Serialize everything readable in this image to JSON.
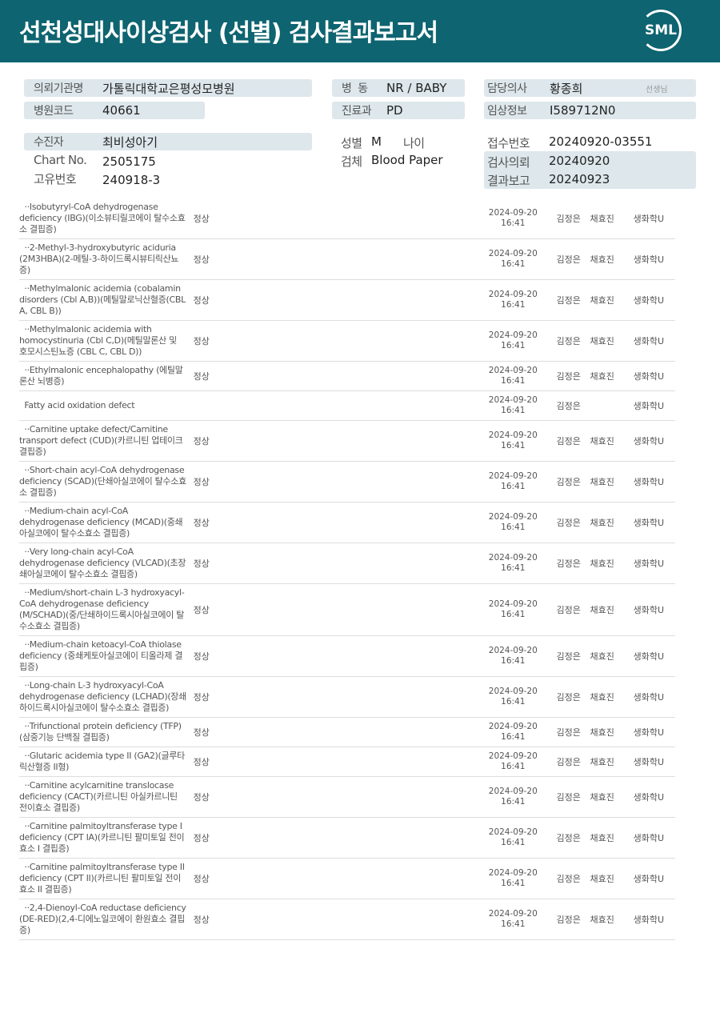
{
  "title": "선천성대사이상검사 (선별) 검사결과보고서",
  "logo": "SML",
  "info": {
    "inst_label": "의뢰기관명",
    "inst": "가톨릭대학교은평성모병원",
    "code_label": "병원코드",
    "code": "40661",
    "ward_label": "병  동",
    "ward": "NR / BABY",
    "dept_label": "진료과",
    "dept": "PD",
    "doctor_label": "담당의사",
    "doctor": "황종희",
    "doctor_suffix": "선생님",
    "clinical_label": "임상정보",
    "clinical": "I589712N0",
    "patient_label": "수진자",
    "patient": "최비성아기",
    "chart_label": "Chart No.",
    "chart": "2505175",
    "uid_label": "고유번호",
    "uid": "240918-3",
    "sex_label": "성별",
    "sex": "M",
    "age_label": "나이",
    "specimen_label": "검체",
    "specimen": "Blood Paper",
    "receipt_label": "접수번호",
    "receipt": "20240920-03551",
    "request_label": "검사의뢰",
    "request": "20240920",
    "report_label": "결과보고",
    "report": "20240923"
  },
  "rows": [
    {
      "name": "  ··Isobutyryl-CoA dehydrogenase deficiency (IBG)(이소뷰티릴코에이 탈수소효소 결핍증)",
      "result": "정상",
      "date": "2024-09-20",
      "time": "16:41",
      "tester": "김정은",
      "verifier": "채효진",
      "dept": "생화학U"
    },
    {
      "name": "  ··2-Methyl-3-hydroxybutyric aciduria (2M3HBA)(2-메틸-3-하이드록시뷰티릭산뇨증)",
      "result": "정상",
      "date": "2024-09-20",
      "time": "16:41",
      "tester": "김정은",
      "verifier": "채효진",
      "dept": "생화학U"
    },
    {
      "name": "  ··Methylmalonic acidemia (cobalamin disorders (Cbl A,B))(메틸말로닉산혈증(CBL A, CBL B))",
      "result": "정상",
      "date": "2024-09-20",
      "time": "16:41",
      "tester": "김정은",
      "verifier": "채효진",
      "dept": "생화학U"
    },
    {
      "name": "  ··Methylmalonic acidemia with homocystinuria (Cbl C,D)(메틸말론산 및 호모시스틴뇨증 (CBL C, CBL D))",
      "result": "정상",
      "date": "2024-09-20",
      "time": "16:41",
      "tester": "김정은",
      "verifier": "채효진",
      "dept": "생화학U"
    },
    {
      "name": "  ··Ethylmalonic encephalopathy (에틸말론산 뇌병증)",
      "result": "정상",
      "date": "2024-09-20",
      "time": "16:41",
      "tester": "김정은",
      "verifier": "채효진",
      "dept": "생화학U"
    },
    {
      "name": "  Fatty acid oxidation defect",
      "result": "",
      "date": "2024-09-20",
      "time": "16:41",
      "tester": "김정은",
      "verifier": "",
      "dept": "생화학U"
    },
    {
      "name": "  ··Carnitine uptake defect/Carnitine transport defect (CUD)(카르니틴 업테이크 결핍증)",
      "result": "정상",
      "date": "2024-09-20",
      "time": "16:41",
      "tester": "김정은",
      "verifier": "채효진",
      "dept": "생화학U"
    },
    {
      "name": "  ··Short-chain acyl-CoA dehydrogenase deficiency (SCAD)(단쇄아실코에이 탈수소효소 결핍증)",
      "result": "정상",
      "date": "2024-09-20",
      "time": "16:41",
      "tester": "김정은",
      "verifier": "채효진",
      "dept": "생화학U"
    },
    {
      "name": "  ··Medium-chain acyl-CoA dehydrogenase deficiency (MCAD)(중쇄아실코에이 탈수소효소 결핍증)",
      "result": "정상",
      "date": "2024-09-20",
      "time": "16:41",
      "tester": "김정은",
      "verifier": "채효진",
      "dept": "생화학U"
    },
    {
      "name": "  ··Very long-chain acyl-CoA dehydrogenase deficiency (VLCAD)(초장쇄아실코에이 탈수소효소 결핍증)",
      "result": "정상",
      "date": "2024-09-20",
      "time": "16:41",
      "tester": "김정은",
      "verifier": "채효진",
      "dept": "생화학U"
    },
    {
      "name": "  ··Medium/short-chain L-3 hydroxyacyl-CoA dehydrogenase deficiency (M/SCHAD)(중/단쇄하이드록시아실코에이 탈수소효소 결핍증)",
      "result": "정상",
      "date": "2024-09-20",
      "time": "16:41",
      "tester": "김정은",
      "verifier": "채효진",
      "dept": "생화학U"
    },
    {
      "name": "  ··Medium-chain ketoacyl-CoA thiolase deficiency (중쇄케토아실코에이 티올라제 결핍증)",
      "result": "정상",
      "date": "2024-09-20",
      "time": "16:41",
      "tester": "김정은",
      "verifier": "채효진",
      "dept": "생화학U"
    },
    {
      "name": "  ··Long-chain L-3 hydroxyacyl-CoA dehydrogenase deficiency (LCHAD)(장쇄하이드록시아실코에이 탈수소효소 결핍증)",
      "result": "정상",
      "date": "2024-09-20",
      "time": "16:41",
      "tester": "김정은",
      "verifier": "채효진",
      "dept": "생화학U"
    },
    {
      "name": "  ··Trifunctional protein deficiency (TFP)(삼중기능 단백질 결핍증)",
      "result": "정상",
      "date": "2024-09-20",
      "time": "16:41",
      "tester": "김정은",
      "verifier": "채효진",
      "dept": "생화학U"
    },
    {
      "name": "  ··Glutaric acidemia type II (GA2)(글루타릭산혈증 II형)",
      "result": "정상",
      "date": "2024-09-20",
      "time": "16:41",
      "tester": "김정은",
      "verifier": "채효진",
      "dept": "생화학U"
    },
    {
      "name": "  ··Carnitine acylcarnitine translocase deficiency (CACT)(카르니틴 아실카르니틴 전이효소 결핍증)",
      "result": "정상",
      "date": "2024-09-20",
      "time": "16:41",
      "tester": "김정은",
      "verifier": "채효진",
      "dept": "생화학U"
    },
    {
      "name": "  ··Carnitine palmitoyltransferase type I deficiency (CPT IA)(카르니틴 팔미토일 전이효소 I 결핍증)",
      "result": "정상",
      "date": "2024-09-20",
      "time": "16:41",
      "tester": "김정은",
      "verifier": "채효진",
      "dept": "생화학U"
    },
    {
      "name": "  ··Carnitine palmitoyltransferase type II deficiency (CPT II)(카르니틴 팔미토일 전이효소 II 결핍증)",
      "result": "정상",
      "date": "2024-09-20",
      "time": "16:41",
      "tester": "김정은",
      "verifier": "채효진",
      "dept": "생화학U"
    },
    {
      "name": "  ··2,4-Dienoyl-CoA reductase deficiency (DE-RED)(2,4-디에노일코에이 환원효소 결핍증)",
      "result": "정상",
      "date": "2024-09-20",
      "time": "16:41",
      "tester": "김정은",
      "verifier": "채효진",
      "dept": "생화학U"
    }
  ]
}
